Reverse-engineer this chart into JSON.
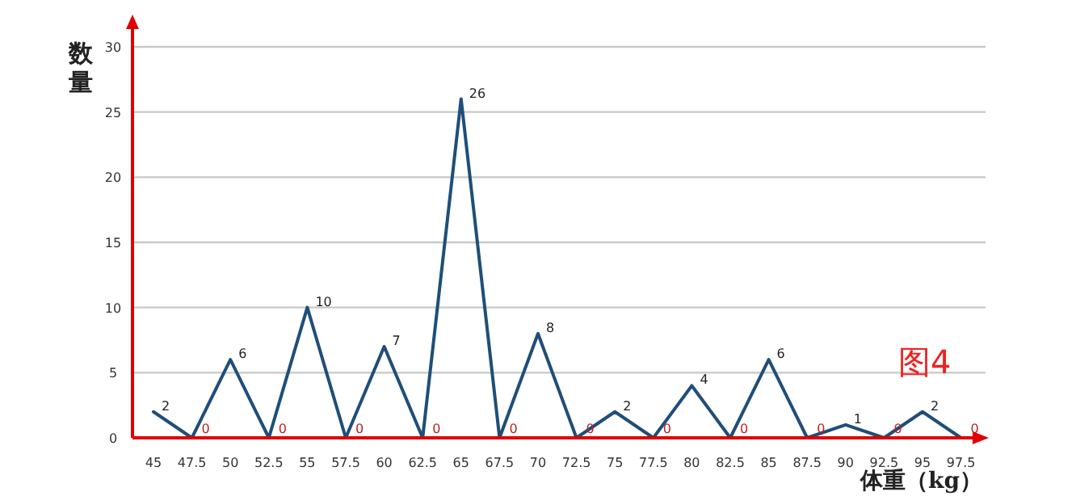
{
  "chart_data": {
    "type": "line",
    "ylabel": "数量",
    "xlabel": "体重（kg）",
    "annotations": [
      "图4"
    ],
    "categories": [
      "45",
      "47.5",
      "50",
      "52.5",
      "55",
      "57.5",
      "60",
      "62.5",
      "65",
      "67.5",
      "70",
      "72.5",
      "75",
      "77.5",
      "80",
      "82.5",
      "85",
      "87.5",
      "90",
      "92.5",
      "95",
      "97.5"
    ],
    "series": [
      {
        "color": "#1f4e79",
        "values": [
          2,
          0,
          6,
          0,
          10,
          0,
          7,
          0,
          26,
          0,
          8,
          0,
          2,
          0,
          4,
          0,
          6,
          0,
          1,
          0,
          2,
          0
        ]
      }
    ],
    "ylim": [
      0,
      30
    ],
    "yticks": [
      0,
      5,
      10,
      15,
      20,
      25,
      30
    ],
    "grid": "y",
    "marker": "none",
    "line_style": "solid",
    "data_labels": true
  }
}
